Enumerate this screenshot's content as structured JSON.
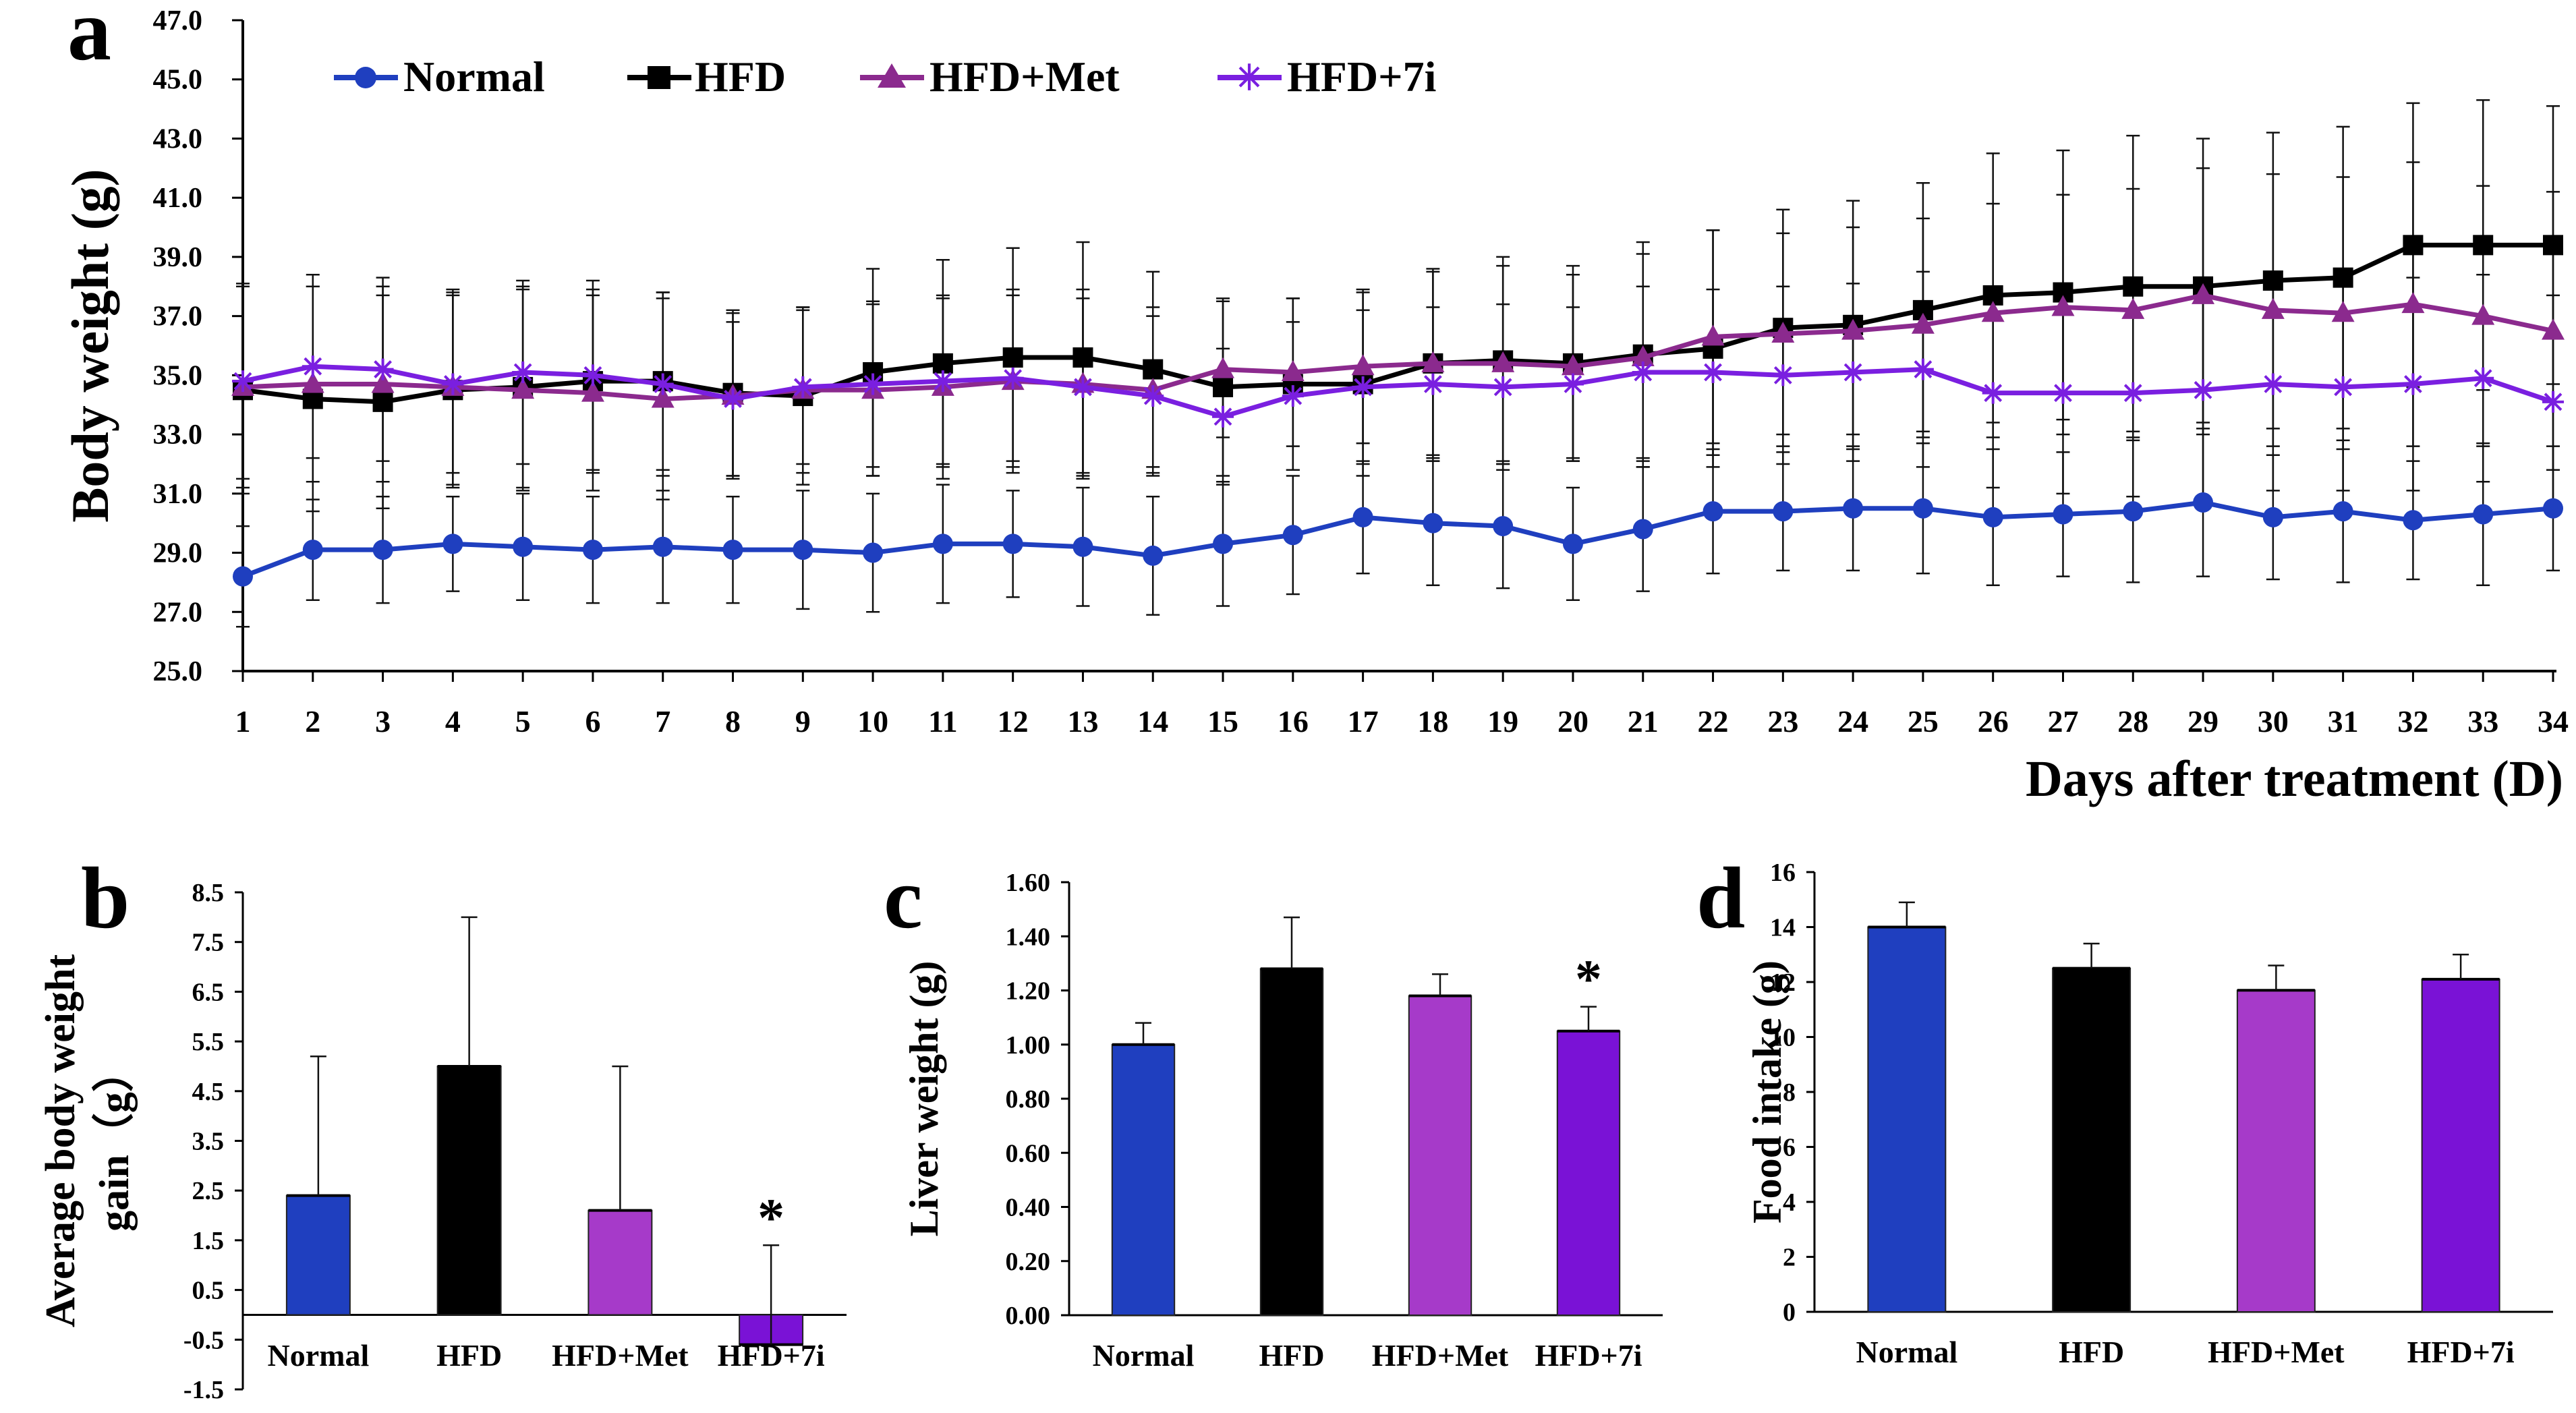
{
  "figure": {
    "panel_letters": [
      "a",
      "b",
      "c",
      "d"
    ],
    "legend": [
      "Normal",
      "HFD",
      "HFD+Met",
      "HFD+7i"
    ]
  },
  "colors": {
    "normal": "#1f3fbf",
    "hfd": "#000000",
    "met": "#8b2a8e",
    "i7": "#7a1fe0",
    "met_bar": "#a63ac9",
    "i7_bar": "#7a12d6",
    "axis": "#000000"
  },
  "chart_data": [
    {
      "id": "a",
      "type": "line",
      "title": "",
      "xlabel": "Days after treatment (D)",
      "ylabel": "Body weight (g)",
      "ylim": [
        25,
        47
      ],
      "yticks": [
        "25.0",
        "27.0",
        "29.0",
        "31.0",
        "33.0",
        "35.0",
        "37.0",
        "39.0",
        "41.0",
        "43.0",
        "45.0",
        "47.0"
      ],
      "x": [
        1,
        2,
        3,
        4,
        5,
        6,
        7,
        8,
        9,
        10,
        11,
        12,
        13,
        14,
        15,
        16,
        17,
        18,
        19,
        20,
        21,
        22,
        23,
        24,
        25,
        26,
        27,
        28,
        29,
        30,
        31,
        32,
        33,
        34
      ],
      "series": [
        {
          "name": "Normal",
          "marker": "circle",
          "color_key": "normal",
          "values": [
            28.2,
            29.1,
            29.1,
            29.3,
            29.2,
            29.1,
            29.2,
            29.1,
            29.1,
            29.0,
            29.3,
            29.3,
            29.2,
            28.9,
            29.3,
            29.6,
            30.2,
            30.0,
            29.9,
            29.3,
            29.8,
            30.4,
            30.4,
            30.5,
            30.5,
            30.2,
            30.3,
            30.4,
            30.7,
            30.2,
            30.4,
            30.1,
            30.3,
            30.5
          ],
          "errors": [
            1.7,
            1.7,
            1.8,
            1.6,
            1.8,
            1.8,
            1.9,
            1.8,
            2.0,
            2.0,
            2.0,
            1.8,
            2.0,
            2.0,
            2.1,
            2.0,
            1.9,
            2.1,
            2.1,
            1.9,
            2.1,
            2.1,
            2.0,
            2.1,
            2.2,
            2.3,
            2.1,
            2.4,
            2.5,
            2.1,
            2.4,
            2.0,
            2.4,
            2.1
          ]
        },
        {
          "name": "HFD",
          "marker": "square",
          "color_key": "hfd",
          "values": [
            34.5,
            34.2,
            34.1,
            34.5,
            34.6,
            34.8,
            34.8,
            34.4,
            34.3,
            35.1,
            35.4,
            35.6,
            35.6,
            35.2,
            34.6,
            34.7,
            34.7,
            35.4,
            35.5,
            35.4,
            35.7,
            35.9,
            36.6,
            36.7,
            37.2,
            37.7,
            37.8,
            38.0,
            38.0,
            38.2,
            38.3,
            39.4,
            39.4,
            39.4
          ],
          "errors": [
            3.5,
            3.8,
            3.6,
            3.3,
            3.4,
            3.1,
            3.0,
            2.8,
            3.0,
            3.5,
            3.5,
            3.7,
            3.9,
            3.3,
            3.0,
            2.9,
            3.1,
            3.2,
            3.5,
            3.3,
            3.8,
            4.0,
            4.0,
            4.2,
            4.3,
            4.8,
            4.8,
            5.1,
            5.0,
            5.0,
            5.1,
            4.8,
            4.9,
            4.7
          ]
        },
        {
          "name": "HFD+Met",
          "marker": "triangle",
          "color_key": "met",
          "values": [
            34.6,
            34.7,
            34.7,
            34.6,
            34.5,
            34.4,
            34.2,
            34.3,
            34.5,
            34.5,
            34.6,
            34.8,
            34.7,
            34.5,
            35.2,
            35.1,
            35.3,
            35.4,
            35.4,
            35.3,
            35.6,
            36.3,
            36.4,
            36.5,
            36.7,
            37.1,
            37.3,
            37.2,
            37.7,
            37.2,
            37.1,
            37.4,
            37.0,
            36.5
          ],
          "errors": [
            3.4,
            3.3,
            3.3,
            3.3,
            3.4,
            3.3,
            3.4,
            2.8,
            2.8,
            2.9,
            3.1,
            3.1,
            3.2,
            2.8,
            2.3,
            2.5,
            2.6,
            3.1,
            3.3,
            3.1,
            3.5,
            3.6,
            3.4,
            3.5,
            3.6,
            3.7,
            3.8,
            4.1,
            4.3,
            4.6,
            4.6,
            4.8,
            4.4,
            4.7
          ]
        },
        {
          "name": "HFD+7i",
          "marker": "star",
          "color_key": "i7",
          "values": [
            34.8,
            35.3,
            35.2,
            34.7,
            35.1,
            35.0,
            34.7,
            34.2,
            34.6,
            34.7,
            34.8,
            34.9,
            34.6,
            34.3,
            33.6,
            34.3,
            34.6,
            34.7,
            34.6,
            34.7,
            35.1,
            35.1,
            35.0,
            35.1,
            35.2,
            34.4,
            34.4,
            34.4,
            34.5,
            34.7,
            34.6,
            34.7,
            34.9,
            34.1
          ],
          "errors": [
            3.3,
            3.1,
            3.1,
            3.0,
            3.1,
            3.2,
            3.1,
            2.6,
            2.6,
            2.8,
            2.8,
            2.8,
            3.0,
            2.7,
            2.3,
            2.5,
            2.6,
            2.6,
            2.8,
            2.6,
            2.9,
            2.8,
            3.0,
            3.0,
            3.3,
            3.2,
            3.4,
            3.5,
            3.6,
            3.6,
            3.5,
            3.6,
            3.5,
            3.6
          ]
        }
      ]
    },
    {
      "id": "b",
      "type": "bar",
      "ylabel": "Average body weight gain（g）",
      "ylim": [
        -1.5,
        8.5
      ],
      "yticks": [
        "-1.5",
        "-0.5",
        "0.5",
        "1.5",
        "2.5",
        "3.5",
        "4.5",
        "5.5",
        "6.5",
        "7.5",
        "8.5"
      ],
      "categories": [
        "Normal",
        "HFD",
        "HFD+Met",
        "HFD+7i"
      ],
      "values": [
        2.4,
        5.0,
        2.1,
        -0.6
      ],
      "errors": [
        2.8,
        3.0,
        2.9,
        2.0
      ],
      "annotations": [
        "",
        "",
        "",
        "*"
      ]
    },
    {
      "id": "c",
      "type": "bar",
      "ylabel": "Liver weight (g)",
      "ylim": [
        0,
        1.6
      ],
      "yticks": [
        "0.00",
        "0.20",
        "0.40",
        "0.60",
        "0.80",
        "1.00",
        "1.20",
        "1.40",
        "1.60"
      ],
      "categories": [
        "Normal",
        "HFD",
        "HFD+Met",
        "HFD+7i"
      ],
      "values": [
        1.0,
        1.28,
        1.18,
        1.05
      ],
      "errors": [
        0.08,
        0.19,
        0.08,
        0.09
      ],
      "annotations": [
        "",
        "",
        "",
        "*"
      ]
    },
    {
      "id": "d",
      "type": "bar",
      "ylabel": "Food intake (g)",
      "ylim": [
        0,
        16
      ],
      "yticks": [
        "0",
        "2",
        "4",
        "6",
        "8",
        "10",
        "12",
        "14",
        "16"
      ],
      "categories": [
        "Normal",
        "HFD",
        "HFD+Met",
        "HFD+7i"
      ],
      "values": [
        14.0,
        12.5,
        11.7,
        12.1
      ],
      "errors": [
        0.9,
        0.9,
        0.9,
        0.9
      ],
      "annotations": [
        "",
        "",
        "",
        ""
      ]
    }
  ]
}
